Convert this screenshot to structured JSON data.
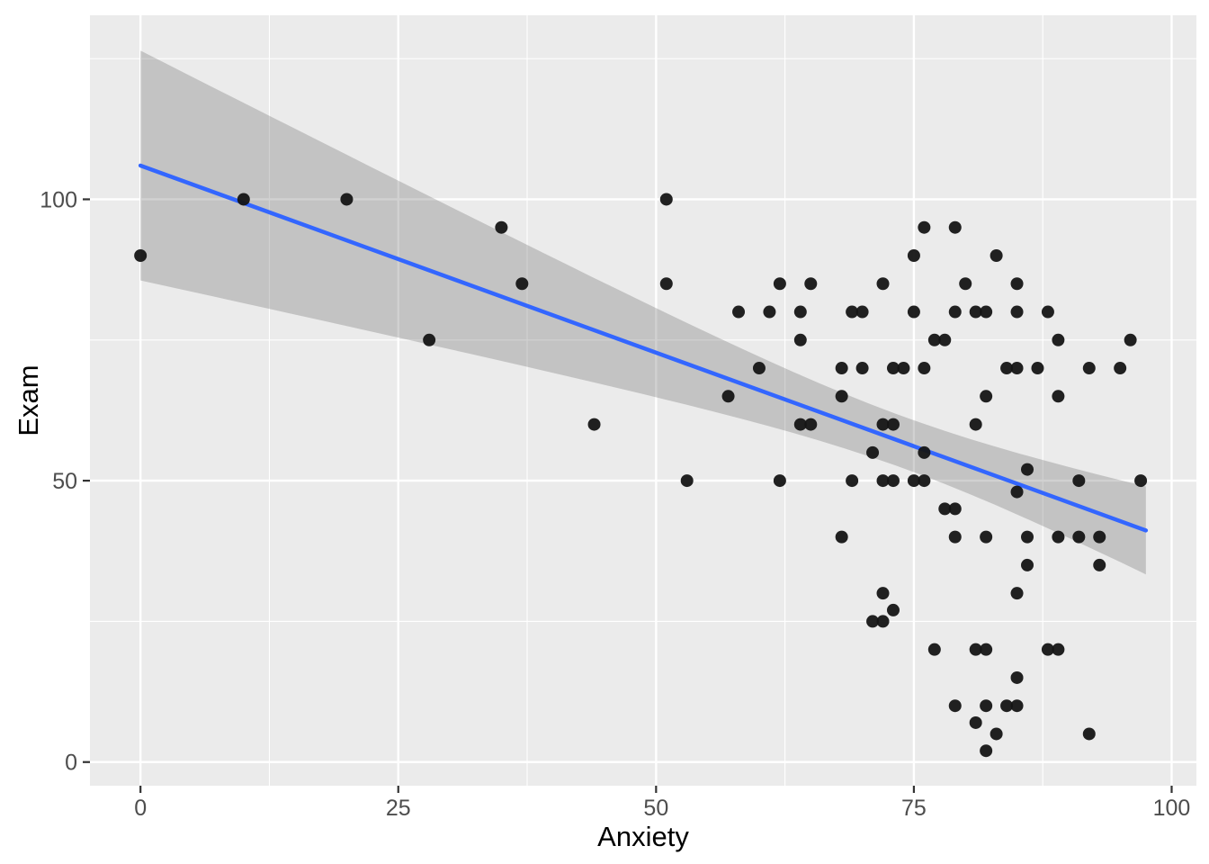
{
  "chart_data": {
    "type": "scatter",
    "title": "",
    "xlabel": "Anxiety",
    "ylabel": "Exam",
    "legend": "none",
    "grid": "on",
    "xlim": [
      -4.9,
      102.4
    ],
    "ylim": [
      -4.2,
      132.7
    ],
    "x_ticks": [
      {
        "v": 0,
        "label": "0"
      },
      {
        "v": 25,
        "label": "25"
      },
      {
        "v": 50,
        "label": "50"
      },
      {
        "v": 75,
        "label": "75"
      },
      {
        "v": 100,
        "label": "100"
      }
    ],
    "y_ticks": [
      {
        "v": 0,
        "label": "0"
      },
      {
        "v": 50,
        "label": "50"
      },
      {
        "v": 100,
        "label": "100"
      }
    ],
    "x_minor": [
      12.5,
      37.5,
      62.5,
      87.5
    ],
    "y_minor": [
      25,
      75,
      125
    ],
    "points": [
      [
        0,
        90
      ],
      [
        10,
        100
      ],
      [
        20,
        100
      ],
      [
        28,
        75
      ],
      [
        35,
        95
      ],
      [
        37,
        85
      ],
      [
        44,
        60
      ],
      [
        51,
        100
      ],
      [
        51,
        85
      ],
      [
        53,
        50
      ],
      [
        57,
        65
      ],
      [
        58,
        80
      ],
      [
        60,
        70
      ],
      [
        61,
        80
      ],
      [
        62,
        85
      ],
      [
        62,
        50
      ],
      [
        64,
        80
      ],
      [
        64,
        75
      ],
      [
        64,
        60
      ],
      [
        65,
        60
      ],
      [
        65,
        85
      ],
      [
        68,
        65
      ],
      [
        68,
        70
      ],
      [
        68,
        40
      ],
      [
        69,
        80
      ],
      [
        69,
        50
      ],
      [
        70,
        80
      ],
      [
        70,
        70
      ],
      [
        71,
        55
      ],
      [
        71,
        25
      ],
      [
        72,
        85
      ],
      [
        72,
        60
      ],
      [
        72,
        30
      ],
      [
        72,
        25
      ],
      [
        72,
        50
      ],
      [
        73,
        50
      ],
      [
        73,
        70
      ],
      [
        73,
        60
      ],
      [
        73,
        27
      ],
      [
        74,
        70
      ],
      [
        75,
        90
      ],
      [
        75,
        80
      ],
      [
        75,
        50
      ],
      [
        76,
        95
      ],
      [
        76,
        70
      ],
      [
        76,
        50
      ],
      [
        76,
        55
      ],
      [
        77,
        75
      ],
      [
        77,
        20
      ],
      [
        78,
        75
      ],
      [
        78,
        45
      ],
      [
        79,
        95
      ],
      [
        79,
        80
      ],
      [
        79,
        45
      ],
      [
        79,
        40
      ],
      [
        79,
        10
      ],
      [
        80,
        85
      ],
      [
        81,
        80
      ],
      [
        82,
        80
      ],
      [
        85,
        80
      ],
      [
        88,
        80
      ],
      [
        81,
        60
      ],
      [
        81,
        20
      ],
      [
        81,
        7
      ],
      [
        82,
        65
      ],
      [
        82,
        40
      ],
      [
        82,
        20
      ],
      [
        82,
        10
      ],
      [
        82,
        2
      ],
      [
        83,
        90
      ],
      [
        83,
        5
      ],
      [
        84,
        70
      ],
      [
        84,
        10
      ],
      [
        85,
        85
      ],
      [
        85,
        70
      ],
      [
        85,
        48
      ],
      [
        85,
        30
      ],
      [
        85,
        15
      ],
      [
        85,
        10
      ],
      [
        86,
        52
      ],
      [
        86,
        40
      ],
      [
        86,
        35
      ],
      [
        87,
        70
      ],
      [
        88,
        20
      ],
      [
        89,
        75
      ],
      [
        89,
        65
      ],
      [
        89,
        40
      ],
      [
        89,
        20
      ],
      [
        91,
        40
      ],
      [
        91,
        50
      ],
      [
        92,
        70
      ],
      [
        92,
        5
      ],
      [
        93,
        40
      ],
      [
        93,
        35
      ],
      [
        95,
        70
      ],
      [
        96,
        75
      ],
      [
        97,
        50
      ]
    ],
    "regression": {
      "slope": -0.665,
      "intercept": 106,
      "x_start": 0,
      "x_end": 97.5
    },
    "ribbon": {
      "amplitude": 4.6,
      "center_x": 74,
      "spread": 293,
      "x_start": 0,
      "x_end": 97.5
    },
    "colors": {
      "figure_bg": "#FFFFFF",
      "panel_bg": "#EBEBEB",
      "grid": "#FFFFFF",
      "point": "#151515",
      "line": "#3366FF",
      "ribbon": "rgba(102,102,102,0.30)",
      "tick": "#333333",
      "tick_label": "#4D4D4D",
      "axis_title": "#000000"
    }
  }
}
